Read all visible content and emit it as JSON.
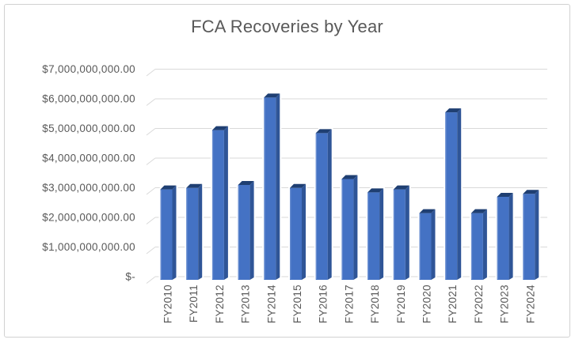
{
  "chart": {
    "title": "FCA Recoveries by Year"
  },
  "chart_data": {
    "type": "bar",
    "style": "3d-clustered-column",
    "title": "FCA Recoveries by Year",
    "xlabel": "",
    "ylabel": "",
    "categories": [
      "FY2010",
      "FY2011",
      "FY2012",
      "FY2013",
      "FY2014",
      "FY2015",
      "FY2016",
      "FY2017",
      "FY2018",
      "FY2019",
      "FY2020",
      "FY2021",
      "FY2022",
      "FY2023",
      "FY2024"
    ],
    "series": [
      {
        "name": "FCA Recoveries",
        "unit": "USD billions",
        "values": [
          3.05,
          3.1,
          5.05,
          3.2,
          6.15,
          3.1,
          4.95,
          3.4,
          2.95,
          3.05,
          2.25,
          5.65,
          2.25,
          2.8,
          2.9
        ]
      }
    ],
    "ylim": [
      0,
      7
    ],
    "y_tick_step": 1,
    "y_tick_labels": [
      "$-",
      "$1,000,000,000.00",
      "$2,000,000,000.00",
      "$3,000,000,000.00",
      "$4,000,000,000.00",
      "$5,000,000,000.00",
      "$6,000,000,000.00",
      "$7,000,000,000.00"
    ],
    "grid": true,
    "legend": false,
    "x_tick_rotation_degrees": 90,
    "colors": {
      "bar_front": "#4472C4",
      "bar_side": "#2F5597",
      "bar_top": "#1F3F72",
      "bar_highlight": "#7396D5",
      "gridline": "#D9D9D9",
      "axis_text": "#595959",
      "title_text": "#595959",
      "frame_border": "#D1D1D1",
      "background": "#FFFFFF"
    }
  }
}
